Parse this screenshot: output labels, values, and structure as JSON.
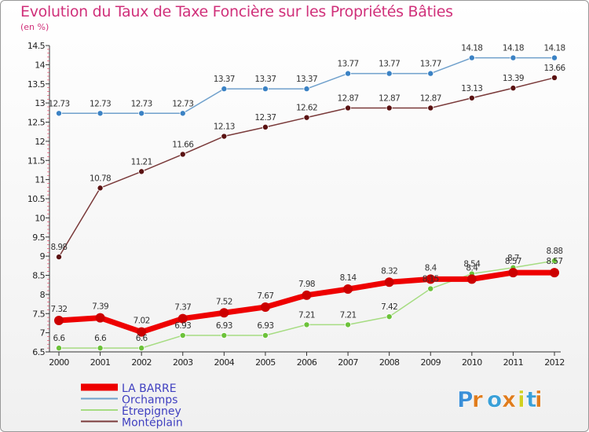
{
  "title": "Evolution du Taux de Taxe Foncière sur les Propriétés Bâties",
  "unit": "(en %)",
  "logo": "Proxiti",
  "chart_data": {
    "type": "line",
    "x": [
      "2000",
      "2001",
      "2002",
      "2003",
      "2004",
      "2005",
      "2006",
      "2007",
      "2008",
      "2009",
      "2010",
      "2011",
      "2012"
    ],
    "ylim": [
      6.5,
      14.5
    ],
    "yticks": [
      "6.5",
      "7",
      "7.5",
      "8",
      "8.5",
      "9",
      "9.5",
      "10",
      "10.5",
      "11",
      "11.5",
      "12",
      "12.5",
      "13",
      "13.5",
      "14",
      "14.5"
    ],
    "grid": false,
    "legend_position": "bottom-left",
    "series": [
      {
        "name": "Orchamps",
        "color": "#6fa0cc",
        "marker": "#3b82c4",
        "values": [
          12.73,
          12.73,
          12.73,
          12.73,
          13.37,
          13.37,
          13.37,
          13.77,
          13.77,
          13.77,
          14.18,
          14.18,
          14.18
        ],
        "labels": [
          "12.73",
          "12.73",
          "12.73",
          "12.73",
          "13.37",
          "13.37",
          "13.37",
          "13.77",
          "13.77",
          "13.77",
          "14.18",
          "14.18",
          "14.18"
        ]
      },
      {
        "name": "Montéplain",
        "color": "#7a3a3a",
        "marker": "#5a1212",
        "values": [
          8.98,
          10.78,
          11.21,
          11.66,
          12.13,
          12.37,
          12.62,
          12.87,
          12.87,
          12.87,
          13.13,
          13.39,
          13.66
        ],
        "labels": [
          "8.98",
          "10.78",
          "11.21",
          "11.66",
          "12.13",
          "12.37",
          "12.62",
          "12.87",
          "12.87",
          "12.87",
          "13.13",
          "13.39",
          "13.66"
        ]
      },
      {
        "name": "Étrepigney",
        "color": "#a6dc82",
        "marker": "#6cc23a",
        "values": [
          6.6,
          6.6,
          6.6,
          6.93,
          6.93,
          6.93,
          7.21,
          7.21,
          7.42,
          8.15,
          8.54,
          8.7,
          8.88
        ],
        "labels": [
          "6.6",
          "6.6",
          "6.6",
          "6.93",
          "6.93",
          "6.93",
          "7.21",
          "7.21",
          "7.42",
          "8.15",
          "8.54",
          "8.7",
          "8.88"
        ]
      },
      {
        "name": "LA BARRE",
        "color": "#ee0000",
        "marker": "#cc0000",
        "values": [
          7.32,
          7.39,
          7.02,
          7.37,
          7.52,
          7.67,
          7.98,
          8.14,
          8.32,
          8.4,
          8.4,
          8.57,
          8.57
        ],
        "labels": [
          "7.32",
          "7.39",
          "7.02",
          "7.37",
          "7.52",
          "7.67",
          "7.98",
          "8.14",
          "8.32",
          "8.4",
          "8.4",
          "8.57",
          "8.57"
        ]
      }
    ]
  }
}
